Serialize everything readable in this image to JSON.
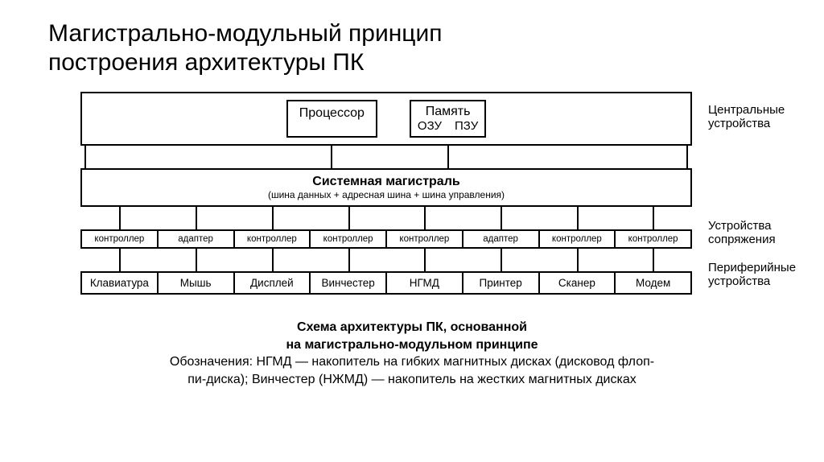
{
  "title_line1": "Магистрально-модульный принцип",
  "title_line2": "построения архитектуры ПК",
  "colors": {
    "background": "#ffffff",
    "text": "#000000",
    "border": "#000000"
  },
  "diagram": {
    "type": "flowchart",
    "top_row": {
      "cpu_label": "Процессор",
      "memory_title": "Память",
      "memory_sub1": "ОЗУ",
      "memory_sub2": "ПЗУ",
      "side_label_l1": "Центральные",
      "side_label_l2": "устройства"
    },
    "bus_row": {
      "title": "Системная магистраль",
      "subtitle": "(шина данных + адресная шина + шина управления)"
    },
    "controllers_row": {
      "cells": [
        "контроллер",
        "адаптер",
        "контроллер",
        "контроллер",
        "контроллер",
        "адаптер",
        "контроллер",
        "контроллер"
      ],
      "side_label_l1": "Устройства",
      "side_label_l2": "сопряжения"
    },
    "peripherals_row": {
      "cells": [
        "Клавиатура",
        "Мышь",
        "Дисплей",
        "Винчестер",
        "НГМД",
        "Принтер",
        "Сканер",
        "Модем"
      ],
      "side_label_l1": "Периферийные",
      "side_label_l2": "устройства"
    }
  },
  "caption": {
    "line1": "Схема архитектуры ПК, основанной",
    "line2": "на магистрально-модульном принципе",
    "line3a": "Обозначения: НГМД — накопитель на гибких магнитных дисках (дисковод флоп-",
    "line3b": "пи-диска); Винчестер (НЖМД) — накопитель на жестких магнитных дисках"
  }
}
